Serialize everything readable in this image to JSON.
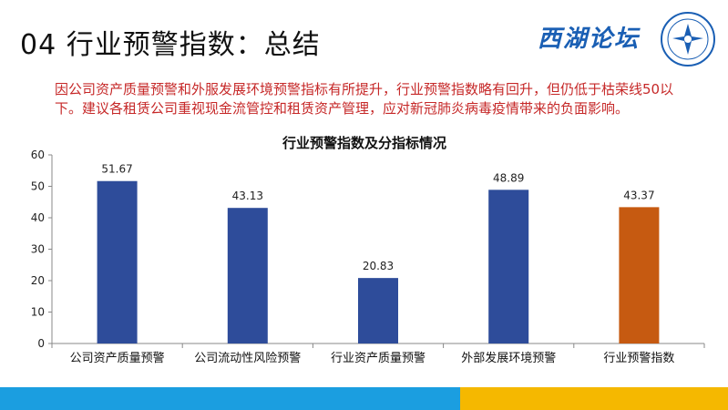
{
  "slide": {
    "title": "04 行业预警指数：总结",
    "logo_text": "西湖论坛",
    "summary": "因公司资产质量预警和外服发展环境预警指标有所提升，行业预警指数略有回升，但仍低于枯荣线50以下。建议各租赁公司重视现金流管控和租赁资产管理，应对新冠肺炎病毒疫情带来的负面影响。"
  },
  "colors": {
    "bar_primary": "#2e4c9a",
    "bar_highlight": "#c65a11",
    "summary_text": "#c62828",
    "bottom_blue": "#1b9ee0",
    "bottom_yellow": "#f5b800"
  },
  "chart_data": {
    "type": "bar",
    "title": "行业预警指数及分指标情况",
    "categories": [
      "公司资产质量预警",
      "公司流动性风险预警",
      "行业资产质量预警",
      "外部发展环境预警",
      "行业预警指数"
    ],
    "values": [
      51.67,
      43.13,
      20.83,
      48.89,
      43.37
    ],
    "data_labels": [
      "51.67",
      "43.13",
      "20.83",
      "48.89",
      "43.37"
    ],
    "highlight_index": 4,
    "ylim": [
      0,
      60
    ],
    "yticks": [
      "0",
      "10",
      "20",
      "30",
      "40",
      "50",
      "60"
    ],
    "xlabel": "",
    "ylabel": "",
    "grid": false,
    "legend": "none"
  }
}
